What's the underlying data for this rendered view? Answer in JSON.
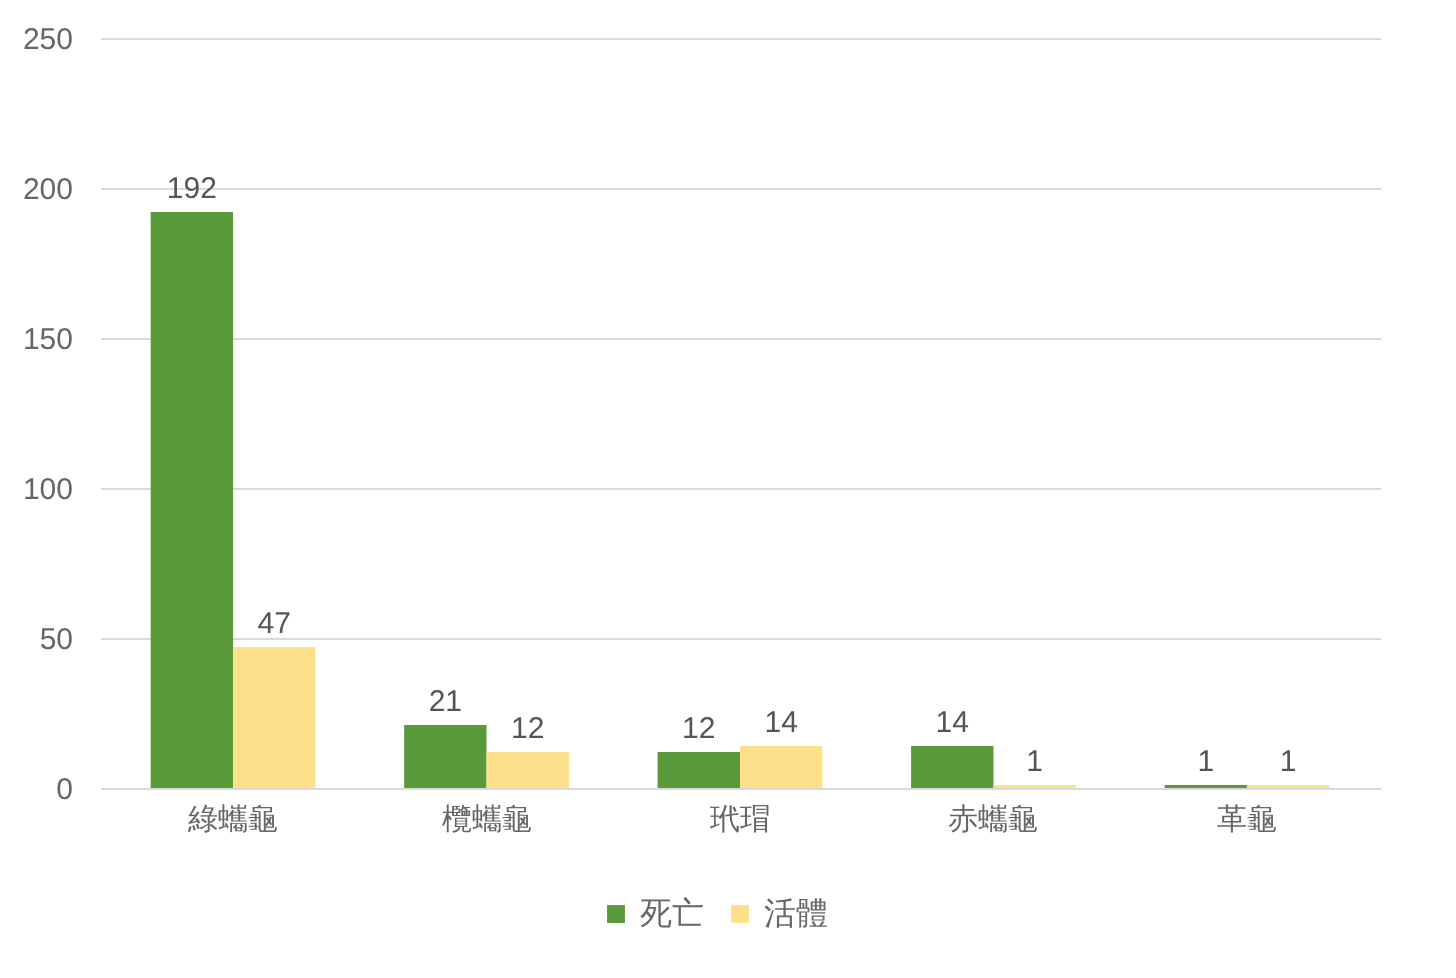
{
  "chart_data": {
    "type": "bar",
    "categories": [
      "綠蠵龜",
      "欖蠵龜",
      "玳瑁",
      "赤蠵龜",
      "革龜"
    ],
    "series": [
      {
        "name": "死亡",
        "color": "#5b9a3a",
        "values": [
          192,
          21,
          12,
          14,
          1
        ]
      },
      {
        "name": "活體",
        "color": "#ffe08a",
        "values": [
          47,
          12,
          14,
          1,
          1
        ]
      }
    ],
    "ylim": [
      0,
      250
    ],
    "yticks": [
      0,
      50,
      100,
      150,
      200,
      250
    ],
    "grid": "y",
    "legend": "bottom",
    "data_labels": true
  }
}
